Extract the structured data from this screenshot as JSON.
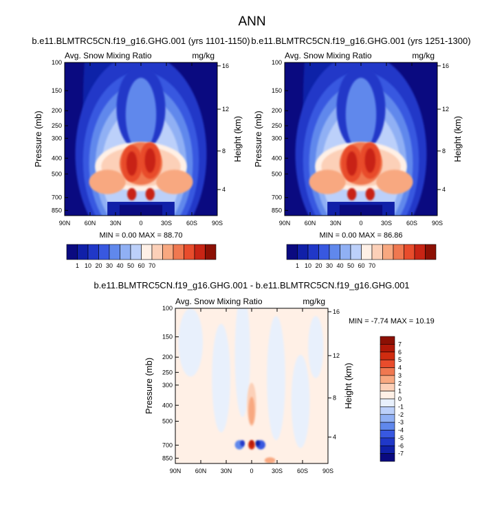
{
  "page_title": "ANN",
  "chart_data": [
    {
      "type": "heatmap",
      "title": "b.e11.BLMTRC5CN.f19_g16.GHG.001 (yrs 1101-1150)",
      "left_label": "Avg. Snow Mixing Ratio",
      "right_label": "mg/kg",
      "xlabel": "",
      "ylabel": "Pressure (mb)",
      "y2label": "Height (km)",
      "x_ticks": [
        "90N",
        "60N",
        "30N",
        "0",
        "30S",
        "60S",
        "90S"
      ],
      "y_ticks": [
        "100",
        "150",
        "200",
        "250",
        "300",
        "400",
        "500",
        "700",
        "850"
      ],
      "y2_ticks": [
        "16",
        "12",
        "8",
        "4"
      ],
      "ylim": [
        100,
        900
      ],
      "stats": "MIN =   0.00  MAX = 88.70",
      "min": 0.0,
      "max": 88.7,
      "colorbar": {
        "labels": [
          "1",
          "10",
          "20",
          "30",
          "40",
          "50",
          "60",
          "70"
        ],
        "colors": [
          "#0a0a80",
          "#1020a8",
          "#2038c8",
          "#3858e0",
          "#6088ec",
          "#90b0f4",
          "#bcd0fa",
          "#fff0e6",
          "#fcd0b8",
          "#f8a880",
          "#f07850",
          "#e84c2c",
          "#c82414",
          "#8c1004"
        ]
      }
    },
    {
      "type": "heatmap",
      "title": "b.e11.BLMTRC5CN.f19_g16.GHG.001 (yrs 1251-1300)",
      "left_label": "Avg. Snow Mixing Ratio",
      "right_label": "mg/kg",
      "xlabel": "",
      "ylabel": "Pressure (mb)",
      "y2label": "Height (km)",
      "x_ticks": [
        "90N",
        "60N",
        "30N",
        "0",
        "30S",
        "60S",
        "90S"
      ],
      "y_ticks": [
        "100",
        "150",
        "200",
        "250",
        "300",
        "400",
        "500",
        "700",
        "850"
      ],
      "y2_ticks": [
        "16",
        "12",
        "8",
        "4"
      ],
      "ylim": [
        100,
        900
      ],
      "stats": "MIN =   0.00  MAX = 86.86",
      "min": 0.0,
      "max": 86.86,
      "colorbar": {
        "labels": [
          "1",
          "10",
          "20",
          "30",
          "40",
          "50",
          "60",
          "70"
        ],
        "colors": [
          "#0a0a80",
          "#1020a8",
          "#2038c8",
          "#3858e0",
          "#6088ec",
          "#90b0f4",
          "#bcd0fa",
          "#fff0e6",
          "#fcd0b8",
          "#f8a880",
          "#f07850",
          "#e84c2c",
          "#c82414",
          "#8c1004"
        ]
      }
    },
    {
      "type": "heatmap",
      "title": "b.e11.BLMTRC5CN.f19_g16.GHG.001 - b.e11.BLMTRC5CN.f19_g16.GHG.001",
      "left_label": "Avg. Snow Mixing Ratio",
      "right_label": "mg/kg",
      "xlabel": "",
      "ylabel": "Pressure (mb)",
      "y2label": "Height (km)",
      "x_ticks": [
        "90N",
        "60N",
        "30N",
        "0",
        "30S",
        "60S",
        "90S"
      ],
      "y_ticks": [
        "100",
        "150",
        "200",
        "250",
        "300",
        "400",
        "500",
        "700",
        "850"
      ],
      "y2_ticks": [
        "16",
        "12",
        "8",
        "4"
      ],
      "ylim": [
        100,
        900
      ],
      "stats": "MIN = -7.74  MAX = 10.19",
      "min": -7.74,
      "max": 10.19,
      "colorbar": {
        "labels": [
          "7",
          "6",
          "5",
          "4",
          "3",
          "2",
          "1",
          "0",
          "-1",
          "-2",
          "-3",
          "-4",
          "-5",
          "-6",
          "-7"
        ],
        "colors": [
          "#8c1004",
          "#b01808",
          "#d02c10",
          "#e84c2c",
          "#f07850",
          "#f8a880",
          "#fcd0b8",
          "#fff0e6",
          "#e8f0fc",
          "#bcd0fa",
          "#90b0f4",
          "#6088ec",
          "#3858e0",
          "#2038c8",
          "#1020a8",
          "#0a0a80"
        ]
      }
    }
  ]
}
